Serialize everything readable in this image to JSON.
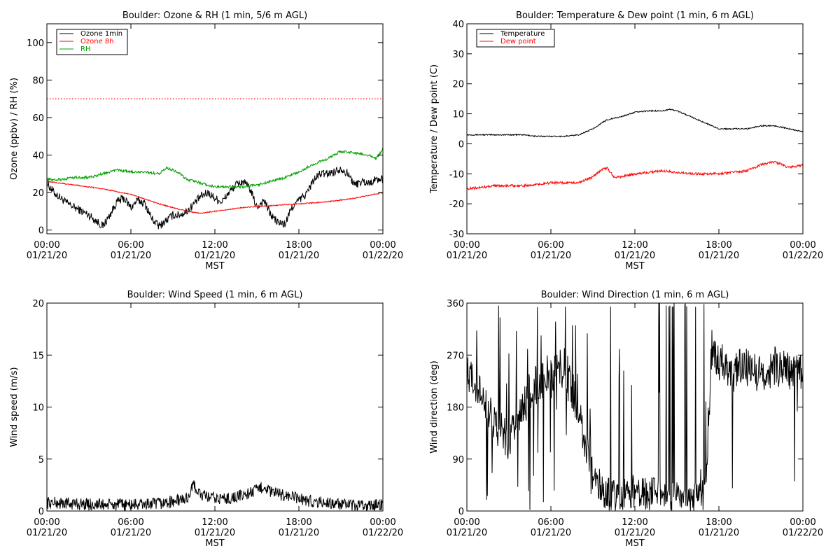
{
  "chart_data": [
    {
      "type": "line",
      "title": "Boulder: Ozone & RH (1 min, 5/6 m AGL)",
      "xlabel": "MST",
      "ylabel": "Ozone (ppbv) / RH (%)",
      "x_ticks": [
        [
          "00:00",
          "01/21/20"
        ],
        [
          "06:00",
          "01/21/20"
        ],
        [
          "12:00",
          "01/21/20"
        ],
        [
          "18:00",
          "01/21/20"
        ],
        [
          "00:00",
          "01/22/20"
        ]
      ],
      "xlim_hours": [
        0,
        24
      ],
      "ylim": [
        -2,
        110
      ],
      "y_ticks": [
        0,
        20,
        40,
        60,
        80,
        100
      ],
      "legend_position": "top-left",
      "reference_line": {
        "y": 70,
        "color": "#ff0000",
        "style": "dotted"
      },
      "series": [
        {
          "name": "Ozone 1min",
          "color": "#000000",
          "noise": 2.2,
          "x": [
            0,
            0.5,
            1,
            1.5,
            2,
            2.5,
            3,
            3.5,
            4,
            4.5,
            5,
            5.5,
            6,
            6.5,
            7,
            7.5,
            8,
            8.5,
            9,
            9.5,
            10,
            10.5,
            11,
            11.5,
            12,
            12.5,
            13,
            13.5,
            14,
            14.5,
            15,
            15.5,
            16,
            16.5,
            17,
            17.5,
            18,
            18.5,
            19,
            19.5,
            20,
            20.5,
            21,
            21.5,
            22,
            22.5,
            23,
            23.5,
            24
          ],
          "values": [
            25,
            20,
            17,
            14,
            12,
            10,
            8,
            5,
            2,
            8,
            15,
            17,
            12,
            16,
            14,
            6,
            2,
            5,
            8,
            8,
            10,
            14,
            18,
            20,
            17,
            15,
            20,
            24,
            26,
            22,
            12,
            16,
            8,
            4,
            3,
            12,
            16,
            19,
            26,
            30,
            30,
            31,
            33,
            30,
            24,
            26,
            25,
            27,
            27
          ]
        },
        {
          "name": "Ozone 8h",
          "color": "#ff0000",
          "noise": 0.3,
          "x": [
            0,
            2,
            4,
            6,
            8,
            10,
            11,
            12,
            14,
            16,
            18,
            20,
            22,
            24
          ],
          "values": [
            26,
            24,
            22,
            19,
            14,
            10,
            9,
            10,
            12,
            13,
            14,
            15,
            17,
            20
          ]
        },
        {
          "name": "RH",
          "color": "#00a000",
          "noise": 0.7,
          "x": [
            0,
            1,
            2,
            3,
            4,
            5,
            6,
            7,
            8,
            8.5,
            9,
            9.5,
            10,
            11,
            12,
            13,
            14,
            15,
            16,
            17,
            18,
            19,
            20,
            20.5,
            21,
            22,
            23,
            23.5,
            24
          ],
          "values": [
            27,
            27,
            28,
            28,
            30,
            32,
            31,
            31,
            30,
            33,
            32,
            30,
            27,
            25,
            23,
            23,
            23,
            24,
            26,
            28,
            31,
            35,
            38,
            40,
            42,
            41,
            40,
            38,
            43
          ]
        }
      ]
    },
    {
      "type": "line",
      "title": "Boulder: Temperature & Dew point (1 min, 6 m AGL)",
      "xlabel": "MST",
      "ylabel": "Temperature / Dew point (C)",
      "x_ticks": [
        [
          "00:00",
          "01/21/20"
        ],
        [
          "06:00",
          "01/21/20"
        ],
        [
          "12:00",
          "01/21/20"
        ],
        [
          "18:00",
          "01/21/20"
        ],
        [
          "00:00",
          "01/22/20"
        ]
      ],
      "xlim_hours": [
        0,
        24
      ],
      "ylim": [
        -30,
        40
      ],
      "y_ticks": [
        -30,
        -20,
        -10,
        0,
        10,
        20,
        30,
        40
      ],
      "legend_position": "top-left",
      "series": [
        {
          "name": "Temperature",
          "color": "#000000",
          "noise": 0.2,
          "x": [
            0,
            2,
            4,
            5,
            6,
            7,
            8,
            9,
            10,
            11,
            12,
            13,
            14,
            14.5,
            15,
            16,
            17,
            18,
            19,
            20,
            21,
            22,
            23,
            24
          ],
          "values": [
            3,
            3,
            3,
            2.5,
            2.5,
            2.5,
            3,
            5,
            8,
            9,
            10.5,
            11,
            11,
            11.5,
            11,
            9,
            7,
            5,
            5,
            5,
            6,
            6,
            5,
            4
          ]
        },
        {
          "name": "Dew point",
          "color": "#ff0000",
          "noise": 0.4,
          "x": [
            0,
            2,
            4,
            6,
            8,
            9,
            9.5,
            10,
            10.5,
            11,
            12,
            14,
            16,
            17,
            18,
            20,
            21,
            22,
            23,
            24
          ],
          "values": [
            -15,
            -14,
            -14,
            -13,
            -13,
            -11,
            -9,
            -8,
            -11,
            -11,
            -10,
            -9,
            -10,
            -10,
            -10,
            -9,
            -7,
            -6,
            -8,
            -7
          ]
        }
      ]
    },
    {
      "type": "line",
      "title": "Boulder: Wind Speed (1 min, 6 m AGL)",
      "xlabel": "MST",
      "ylabel": "Wind speed (m/s)",
      "x_ticks": [
        [
          "00:00",
          "01/21/20"
        ],
        [
          "06:00",
          "01/21/20"
        ],
        [
          "12:00",
          "01/21/20"
        ],
        [
          "18:00",
          "01/21/20"
        ],
        [
          "00:00",
          "01/22/20"
        ]
      ],
      "xlim_hours": [
        0,
        24
      ],
      "ylim": [
        0,
        20
      ],
      "y_ticks": [
        0,
        5,
        10,
        15,
        20
      ],
      "series": [
        {
          "name": "",
          "color": "#000000",
          "noise": 0.6,
          "x": [
            0,
            2,
            4,
            6,
            8,
            9,
            10,
            10.5,
            11,
            12,
            13,
            14,
            15,
            15.5,
            16,
            17,
            18,
            19,
            20,
            21,
            22,
            23,
            24
          ],
          "values": [
            0.8,
            0.7,
            0.6,
            0.6,
            0.7,
            0.9,
            1.2,
            2.5,
            1.5,
            1.2,
            1.2,
            1.5,
            2,
            2.4,
            1.8,
            1.5,
            1.2,
            0.9,
            0.8,
            0.6,
            0.5,
            0.5,
            0.7
          ]
        }
      ]
    },
    {
      "type": "line",
      "title": "Boulder: Wind Direction (1 min, 6 m AGL)",
      "xlabel": "MST",
      "ylabel": "Wind direction (deg)",
      "x_ticks": [
        [
          "00:00",
          "01/21/20"
        ],
        [
          "06:00",
          "01/21/20"
        ],
        [
          "12:00",
          "01/21/20"
        ],
        [
          "18:00",
          "01/21/20"
        ],
        [
          "00:00",
          "01/22/20"
        ]
      ],
      "xlim_hours": [
        0,
        24
      ],
      "ylim": [
        0,
        360
      ],
      "y_ticks": [
        0,
        90,
        180,
        270,
        360
      ],
      "series": [
        {
          "name": "",
          "color": "#000000",
          "noise": 0,
          "x": [
            0,
            1,
            2,
            3,
            4,
            5,
            6,
            7,
            8,
            9,
            10,
            11,
            12,
            13,
            14,
            15,
            16,
            17,
            17.5,
            18,
            19,
            20,
            21,
            22,
            23,
            24
          ],
          "values": [
            240,
            200,
            150,
            120,
            180,
            220,
            240,
            250,
            170,
            60,
            30,
            25,
            35,
            30,
            25,
            20,
            20,
            25,
            280,
            260,
            240,
            250,
            240,
            250,
            240,
            245
          ]
        }
      ]
    }
  ]
}
